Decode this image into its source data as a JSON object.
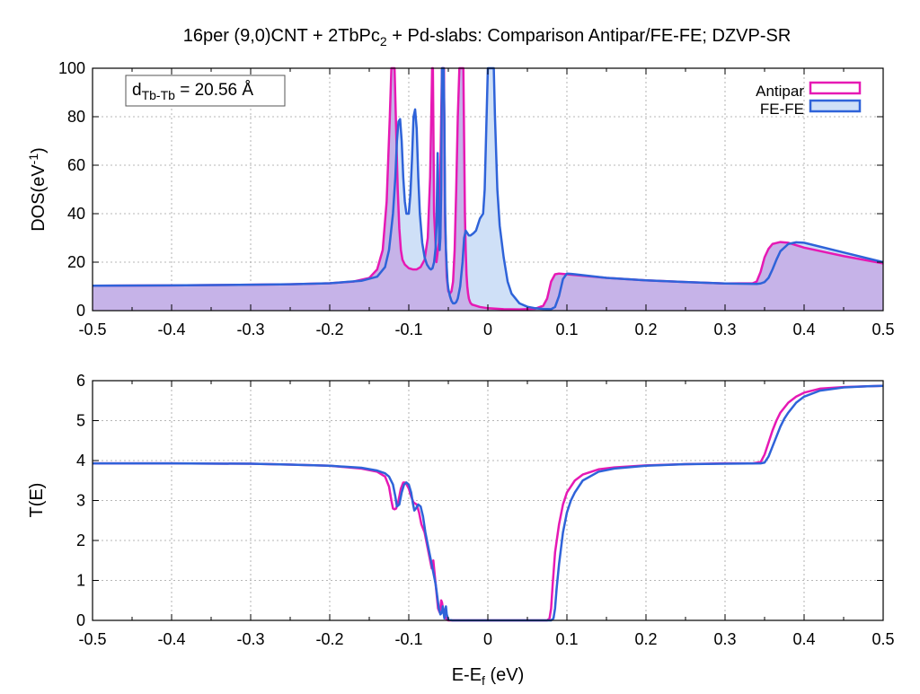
{
  "title": {
    "main": "16per (9,0)CNT + 2TbPc",
    "sub": "2",
    "rest": " + Pd-slabs: Comparison Antipar/FE-FE; DZVP-SR"
  },
  "colors": {
    "antipar": "#e619b4",
    "fefe": "#2f63d9",
    "overlap_fill": "#c6b3e8",
    "fefe_fill": "#cfe0f7",
    "grid": "#a0a0a0"
  },
  "chart_data": [
    {
      "type": "line",
      "panel": "top",
      "title": "",
      "xlabel": "",
      "ylabel": "DOS(eV",
      "ylabel_sup": "-1",
      "ylabel_close": ")",
      "xlim": [
        -0.5,
        0.5
      ],
      "ylim": [
        0,
        100
      ],
      "xticks": [
        -0.5,
        -0.4,
        -0.3,
        -0.2,
        -0.1,
        0,
        0.1,
        0.2,
        0.3,
        0.4,
        0.5
      ],
      "xtick_labels": [
        "-0.5",
        "-0.4",
        "-0.3",
        "-0.2",
        "-0.1",
        "0",
        "0.1",
        "0.2",
        "0.3",
        "0.4",
        "0.5"
      ],
      "yticks": [
        0,
        20,
        40,
        60,
        80,
        100
      ],
      "ytick_labels": [
        "0",
        "20",
        "40",
        "60",
        "80",
        "100"
      ],
      "grid": true,
      "legend": {
        "position": "top-right",
        "entries": [
          "Antipar",
          "FE-FE"
        ]
      },
      "annotation": {
        "main": "d",
        "sub": "Tb-Tb",
        "rest": " = 20.56 Å",
        "position": "top-left"
      },
      "series": [
        {
          "name": "Antipar",
          "filled": true,
          "x": [
            -0.5,
            -0.4,
            -0.3,
            -0.25,
            -0.2,
            -0.17,
            -0.15,
            -0.14,
            -0.133,
            -0.128,
            -0.124,
            -0.122,
            -0.12,
            -0.118,
            -0.116,
            -0.114,
            -0.112,
            -0.11,
            -0.108,
            -0.105,
            -0.1,
            -0.095,
            -0.09,
            -0.085,
            -0.08,
            -0.076,
            -0.073,
            -0.071,
            -0.0705,
            -0.07,
            -0.0695,
            -0.068,
            -0.065,
            -0.062,
            -0.06,
            -0.058,
            -0.057,
            -0.0565,
            -0.056,
            -0.0555,
            -0.055,
            -0.054,
            -0.052,
            -0.05,
            -0.048,
            -0.046,
            -0.044,
            -0.042,
            -0.04,
            -0.038,
            -0.036,
            -0.034,
            -0.033,
            -0.032,
            -0.031,
            -0.03,
            -0.029,
            -0.028,
            -0.027,
            -0.026,
            -0.025,
            -0.024,
            -0.023,
            -0.022,
            -0.02,
            -0.015,
            -0.01,
            0,
            0.02,
            0.04,
            0.06,
            0.07,
            0.075,
            0.08,
            0.085,
            0.09,
            0.1,
            0.15,
            0.2,
            0.25,
            0.3,
            0.335,
            0.34,
            0.345,
            0.35,
            0.355,
            0.36,
            0.37,
            0.38,
            0.4,
            0.45,
            0.5
          ],
          "values": [
            10.3,
            10.4,
            10.7,
            10.9,
            11.3,
            12.0,
            13.5,
            17.0,
            25.0,
            45.0,
            80.0,
            100.0,
            100.0,
            100.0,
            75.0,
            50.0,
            34.0,
            25.0,
            21.0,
            19.0,
            17.5,
            17.0,
            17.0,
            18.0,
            21.0,
            30.0,
            55.0,
            90.0,
            100.0,
            100.0,
            100.0,
            40.0,
            20.0,
            28.0,
            60.0,
            100.0,
            100.0,
            100.0,
            100.0,
            100.0,
            70.0,
            35.0,
            14.0,
            8.0,
            7.0,
            8.0,
            12.0,
            25.0,
            50.0,
            80.0,
            100.0,
            100.0,
            100.0,
            100.0,
            100.0,
            70.0,
            40.0,
            25.0,
            15.0,
            10.0,
            7.0,
            5.0,
            4.0,
            3.2,
            2.5,
            2.0,
            1.5,
            1.0,
            0.6,
            0.5,
            0.8,
            2.0,
            5.0,
            12.0,
            15.0,
            15.3,
            15.0,
            13.5,
            12.5,
            11.8,
            11.2,
            11.3,
            12.0,
            16.0,
            22.0,
            25.5,
            27.5,
            28.3,
            28.0,
            26.0,
            22.5,
            19.5
          ]
        },
        {
          "name": "FE-FE",
          "filled": true,
          "x": [
            -0.5,
            -0.4,
            -0.3,
            -0.25,
            -0.2,
            -0.16,
            -0.14,
            -0.13,
            -0.125,
            -0.12,
            -0.117,
            -0.115,
            -0.113,
            -0.111,
            -0.109,
            -0.107,
            -0.105,
            -0.103,
            -0.1,
            -0.098,
            -0.096,
            -0.094,
            -0.092,
            -0.09,
            -0.088,
            -0.086,
            -0.083,
            -0.08,
            -0.077,
            -0.074,
            -0.072,
            -0.07,
            -0.068,
            -0.066,
            -0.065,
            -0.064,
            -0.0635,
            -0.063,
            -0.062,
            -0.061,
            -0.06,
            -0.059,
            -0.058,
            -0.0575,
            -0.057,
            -0.0565,
            -0.056,
            -0.055,
            -0.054,
            -0.053,
            -0.052,
            -0.051,
            -0.05,
            -0.048,
            -0.046,
            -0.044,
            -0.042,
            -0.04,
            -0.038,
            -0.035,
            -0.032,
            -0.03,
            -0.028,
            -0.026,
            -0.024,
            -0.022,
            -0.02,
            -0.018,
            -0.015,
            -0.012,
            -0.01,
            -0.008,
            -0.006,
            -0.004,
            -0.002,
            0,
            0.0015,
            0.003,
            0.0045,
            0.006,
            0.0075,
            0.009,
            0.012,
            0.015,
            0.02,
            0.025,
            0.03,
            0.04,
            0.05,
            0.06,
            0.07,
            0.08,
            0.085,
            0.09,
            0.095,
            0.1,
            0.11,
            0.15,
            0.2,
            0.25,
            0.3,
            0.34,
            0.345,
            0.35,
            0.355,
            0.36,
            0.365,
            0.37,
            0.38,
            0.39,
            0.4,
            0.45,
            0.5
          ],
          "values": [
            10.3,
            10.4,
            10.7,
            10.9,
            11.3,
            12.3,
            14.0,
            18.0,
            25.0,
            40.0,
            55.0,
            70.0,
            78.0,
            79.0,
            70.0,
            55.0,
            45.0,
            40.0,
            40.0,
            48.0,
            62.0,
            80.0,
            83.0,
            75.0,
            55.0,
            40.0,
            28.0,
            22.0,
            19.0,
            17.5,
            17.0,
            17.5,
            20.0,
            26.0,
            35.0,
            55.0,
            65.0,
            55.0,
            35.0,
            25.0,
            30.0,
            50.0,
            100.0,
            100.0,
            100.0,
            100.0,
            100.0,
            80.0,
            40.0,
            25.0,
            18.0,
            12.0,
            9.0,
            6.0,
            4.0,
            3.0,
            3.0,
            3.5,
            5.0,
            10.0,
            20.0,
            30.0,
            33.0,
            32.0,
            31.0,
            31.0,
            31.5,
            32.0,
            33.0,
            36.0,
            38.0,
            39.0,
            40.0,
            50.0,
            75.0,
            100.0,
            100.0,
            100.0,
            100.0,
            100.0,
            100.0,
            80.0,
            50.0,
            35.0,
            22.0,
            12.0,
            7.0,
            3.0,
            1.6,
            1.0,
            0.7,
            0.6,
            1.5,
            6.0,
            13.0,
            15.3,
            15.0,
            13.5,
            12.5,
            11.8,
            11.2,
            11.0,
            11.2,
            11.8,
            13.5,
            17.0,
            21.0,
            24.5,
            27.5,
            28.2,
            28.0,
            24.0,
            20.0
          ]
        }
      ]
    },
    {
      "type": "line",
      "panel": "bottom",
      "title": "",
      "xlabel": "E-E",
      "xlabel_sub": "f",
      "xlabel_rest": " (eV)",
      "ylabel": "T(E)",
      "xlim": [
        -0.5,
        0.5
      ],
      "ylim": [
        0,
        6
      ],
      "xticks": [
        -0.5,
        -0.4,
        -0.3,
        -0.2,
        -0.1,
        0,
        0.1,
        0.2,
        0.3,
        0.4,
        0.5
      ],
      "xtick_labels": [
        "-0.5",
        "-0.4",
        "-0.3",
        "-0.2",
        "-0.1",
        "0",
        "0.1",
        "0.2",
        "0.3",
        "0.4",
        "0.5"
      ],
      "yticks": [
        0,
        1,
        2,
        3,
        4,
        5,
        6
      ],
      "ytick_labels": [
        "0",
        "1",
        "2",
        "3",
        "4",
        "5",
        "6"
      ],
      "grid": true,
      "series": [
        {
          "name": "Antipar",
          "x": [
            -0.5,
            -0.4,
            -0.3,
            -0.25,
            -0.2,
            -0.16,
            -0.14,
            -0.13,
            -0.125,
            -0.122,
            -0.12,
            -0.118,
            -0.116,
            -0.113,
            -0.11,
            -0.107,
            -0.104,
            -0.1,
            -0.097,
            -0.094,
            -0.09,
            -0.087,
            -0.084,
            -0.08,
            -0.077,
            -0.074,
            -0.071,
            -0.069,
            -0.067,
            -0.065,
            -0.063,
            -0.061,
            -0.06,
            -0.059,
            -0.058,
            -0.056,
            -0.054,
            -0.052,
            -0.05,
            -0.045,
            0,
            0.05,
            0.07,
            0.075,
            0.078,
            0.08,
            0.082,
            0.085,
            0.09,
            0.095,
            0.1,
            0.11,
            0.12,
            0.14,
            0.16,
            0.2,
            0.25,
            0.3,
            0.335,
            0.345,
            0.35,
            0.355,
            0.36,
            0.365,
            0.37,
            0.38,
            0.39,
            0.4,
            0.42,
            0.45,
            0.48,
            0.5
          ],
          "values": [
            3.93,
            3.93,
            3.92,
            3.9,
            3.87,
            3.8,
            3.72,
            3.6,
            3.35,
            3.0,
            2.8,
            2.78,
            2.8,
            3.0,
            3.3,
            3.45,
            3.45,
            3.3,
            3.1,
            2.95,
            2.9,
            2.7,
            2.4,
            2.2,
            1.9,
            1.6,
            1.3,
            1.5,
            1.1,
            0.7,
            0.3,
            0.2,
            0.3,
            0.5,
            0.45,
            0.2,
            0.08,
            0.02,
            0.0,
            0.0,
            0.0,
            0.0,
            0.0,
            0.0,
            0.05,
            0.3,
            0.9,
            1.7,
            2.4,
            2.9,
            3.2,
            3.5,
            3.65,
            3.78,
            3.83,
            3.88,
            3.91,
            3.93,
            3.93,
            3.96,
            4.15,
            4.45,
            4.75,
            5.0,
            5.2,
            5.45,
            5.6,
            5.7,
            5.8,
            5.84,
            5.86,
            5.87
          ]
        },
        {
          "name": "FE-FE",
          "x": [
            -0.5,
            -0.4,
            -0.3,
            -0.25,
            -0.2,
            -0.16,
            -0.14,
            -0.13,
            -0.125,
            -0.12,
            -0.117,
            -0.115,
            -0.112,
            -0.109,
            -0.106,
            -0.103,
            -0.1,
            -0.097,
            -0.095,
            -0.093,
            -0.091,
            -0.088,
            -0.085,
            -0.082,
            -0.079,
            -0.076,
            -0.073,
            -0.07,
            -0.068,
            -0.066,
            -0.064,
            -0.062,
            -0.06,
            -0.058,
            -0.057,
            -0.056,
            -0.055,
            -0.054,
            -0.053,
            -0.052,
            -0.05,
            -0.045,
            0,
            0.05,
            0.075,
            0.08,
            0.083,
            0.085,
            0.087,
            0.09,
            0.095,
            0.1,
            0.105,
            0.11,
            0.12,
            0.14,
            0.16,
            0.2,
            0.25,
            0.3,
            0.345,
            0.35,
            0.355,
            0.36,
            0.365,
            0.37,
            0.375,
            0.38,
            0.39,
            0.4,
            0.42,
            0.45,
            0.48,
            0.5
          ],
          "values": [
            3.93,
            3.93,
            3.92,
            3.9,
            3.87,
            3.82,
            3.75,
            3.68,
            3.6,
            3.4,
            3.1,
            2.85,
            2.9,
            3.2,
            3.4,
            3.45,
            3.4,
            3.2,
            2.95,
            2.75,
            2.8,
            2.9,
            2.85,
            2.6,
            2.2,
            1.9,
            1.6,
            1.3,
            1.1,
            0.9,
            0.6,
            0.3,
            0.15,
            0.2,
            0.35,
            0.2,
            0.05,
            0.25,
            0.35,
            0.15,
            0.02,
            0.0,
            0.0,
            0.0,
            0.0,
            0.0,
            0.05,
            0.3,
            0.8,
            1.4,
            2.2,
            2.7,
            3.0,
            3.2,
            3.5,
            3.72,
            3.8,
            3.87,
            3.91,
            3.92,
            3.93,
            3.95,
            4.1,
            4.35,
            4.6,
            4.85,
            5.05,
            5.2,
            5.45,
            5.6,
            5.75,
            5.83,
            5.86,
            5.87
          ]
        }
      ]
    }
  ]
}
